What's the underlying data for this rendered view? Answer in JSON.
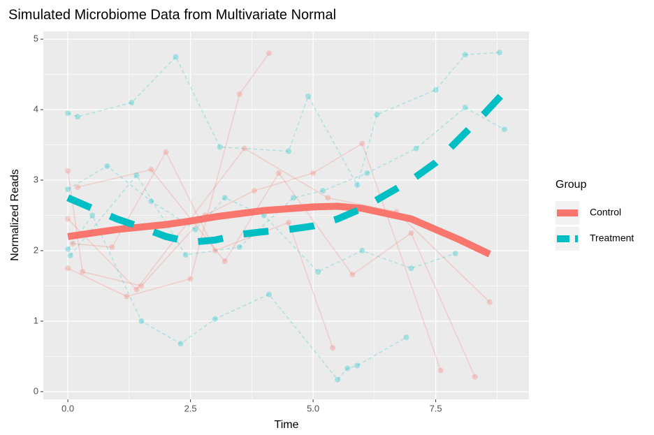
{
  "chart_data": {
    "type": "line",
    "title": "Simulated Microbiome Data from Multivariate Normal",
    "x_label": "Time",
    "y_label": "Normalized Reads",
    "legend_title": "Group",
    "legend_position": "right",
    "grid": true,
    "xlim": [
      -0.5,
      9.4
    ],
    "ylim": [
      -0.11,
      5.11
    ],
    "xticks": [
      0.0,
      2.5,
      5.0,
      7.5
    ],
    "xtick_labels": [
      "0.0",
      "2.5",
      "5.0",
      "7.5"
    ],
    "x_minor_ticks": [
      1.25,
      3.75,
      6.25,
      8.75
    ],
    "yticks": [
      0,
      1,
      2,
      3,
      4,
      5
    ],
    "y_minor_ticks": [
      0.5,
      1.5,
      2.5,
      3.5,
      4.5
    ],
    "series": [
      {
        "name": "Control",
        "color": "#F8766D",
        "linetype": "solid",
        "x": [
          0,
          1,
          2,
          2.5,
          3,
          4,
          5,
          5.5,
          6,
          7,
          7.5,
          8,
          8.6
        ],
        "values": [
          2.2,
          2.3,
          2.37,
          2.42,
          2.48,
          2.57,
          2.62,
          2.63,
          2.6,
          2.45,
          2.3,
          2.15,
          1.95
        ],
        "subjects": [
          {
            "x": [
              0,
              1.2,
              2.5,
              3.5,
              4.1
            ],
            "values": [
              1.75,
              1.35,
              1.6,
              4.22,
              4.8
            ]
          },
          {
            "x": [
              0.1,
              0.9,
              2.0,
              3.0,
              4.5,
              5.4
            ],
            "values": [
              2.1,
              2.05,
              3.4,
              2.0,
              2.4,
              0.62
            ]
          },
          {
            "x": [
              0,
              0.3,
              1.5,
              2.8,
              3.8,
              5.0,
              6.0,
              7.6
            ],
            "values": [
              3.13,
              1.7,
              1.5,
              2.5,
              2.85,
              3.1,
              3.52,
              0.3
            ]
          },
          {
            "x": [
              0.2,
              1.7,
              3.2,
              4.3,
              5.8,
              7.0,
              8.3
            ],
            "values": [
              2.9,
              3.15,
              1.85,
              3.1,
              1.66,
              2.25,
              0.21
            ]
          },
          {
            "x": [
              0,
              1.4,
              3.6,
              5.3,
              6.7,
              8.6
            ],
            "values": [
              2.45,
              1.45,
              3.45,
              2.75,
              2.55,
              1.27
            ]
          }
        ]
      },
      {
        "name": "Treatment",
        "color": "#00BFC4",
        "linetype": "dashed",
        "x": [
          0,
          0.5,
          1,
          1.5,
          2,
          2.5,
          3,
          3.5,
          4,
          4.5,
          5,
          5.5,
          6,
          6.5,
          7,
          7.5,
          8,
          8.5,
          8.9
        ],
        "values": [
          2.75,
          2.6,
          2.45,
          2.33,
          2.2,
          2.12,
          2.15,
          2.23,
          2.27,
          2.3,
          2.35,
          2.45,
          2.6,
          2.8,
          3.0,
          3.25,
          3.6,
          3.95,
          4.25
        ],
        "subjects": [
          {
            "x": [
              0,
              0.2,
              1.3,
              2.2,
              3.1,
              4.5,
              4.9,
              5.9,
              6.3,
              7.5,
              8.1,
              8.8
            ],
            "values": [
              3.95,
              3.9,
              4.1,
              4.75,
              3.47,
              3.41,
              4.19,
              2.93,
              3.93,
              4.28,
              4.78,
              4.81
            ]
          },
          {
            "x": [
              0,
              0.5,
              1.5,
              2.3,
              3.0,
              4.1,
              5.5,
              5.7,
              5.9,
              6.9
            ],
            "values": [
              2.02,
              2.5,
              1.0,
              0.68,
              1.03,
              1.38,
              0.17,
              0.33,
              0.37,
              0.77
            ]
          },
          {
            "x": [
              0,
              0.8,
              1.7,
              2.6,
              3.2,
              4.0,
              5.1,
              6.0,
              7.0,
              7.9
            ],
            "values": [
              2.87,
              3.2,
              2.7,
              2.3,
              2.75,
              2.5,
              1.7,
              2.0,
              1.75,
              1.96
            ]
          },
          {
            "x": [
              0.05,
              1.4,
              2.4,
              3.5,
              4.6,
              5.2,
              6.1,
              7.1,
              8.1,
              8.9
            ],
            "values": [
              1.93,
              3.07,
              1.94,
              2.05,
              2.75,
              2.85,
              3.1,
              3.45,
              4.03,
              3.72
            ]
          }
        ]
      }
    ]
  }
}
